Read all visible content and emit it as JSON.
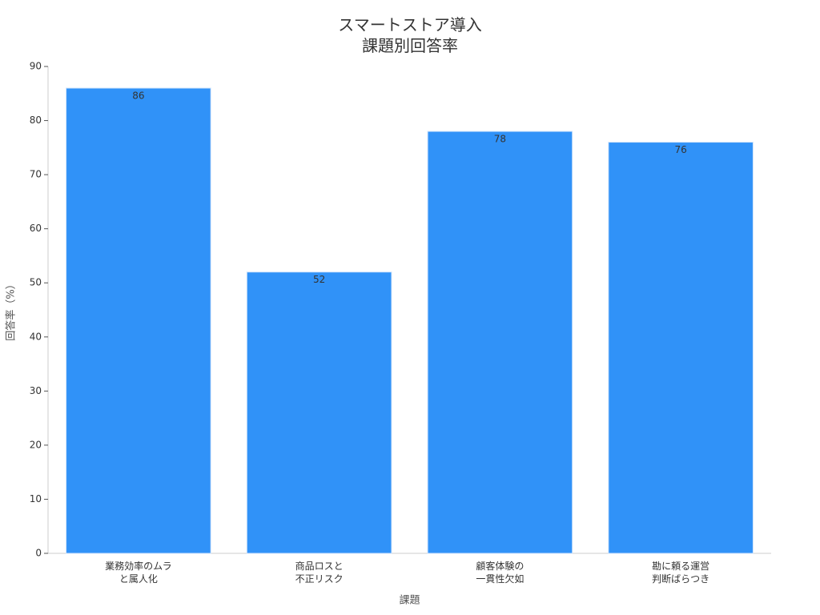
{
  "chart_data": {
    "type": "bar",
    "title": "スマートストア導入\n課題別回答率",
    "x_label": "課題",
    "y_label": "回答率（%）",
    "categories": [
      "業務効率のムラ\nと属人化",
      "商品ロスと\n不正リスク",
      "顧客体験の\n一貫性欠如",
      "勘に頼る運営\n判断ばらつき"
    ],
    "values": [
      86,
      52,
      78,
      76
    ],
    "color": "#3092f8",
    "ylim": [
      0,
      90
    ],
    "yticks": [
      0,
      10,
      20,
      30,
      40,
      50,
      60,
      70,
      80,
      90
    ],
    "grid": false
  }
}
